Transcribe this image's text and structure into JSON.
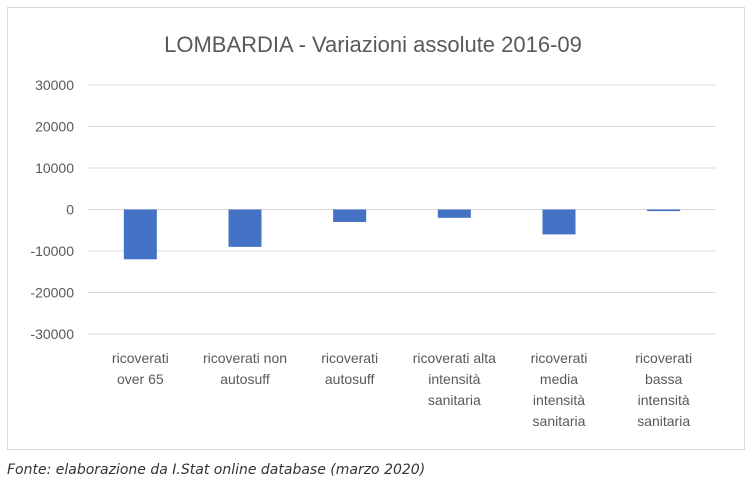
{
  "chart_data": {
    "type": "bar",
    "title": "LOMBARDIA - Variazioni assolute 2016-09",
    "xlabel": "",
    "ylabel": "",
    "ylim": [
      -30000,
      30000
    ],
    "yticks": [
      30000,
      20000,
      10000,
      0,
      -10000,
      -20000,
      -30000
    ],
    "grid": true,
    "legend": "none",
    "bar_color": "#4472c4",
    "categories": [
      [
        "ricoverati",
        "over 65"
      ],
      [
        "ricoverati non",
        "autosuff"
      ],
      [
        "ricoverati",
        "autosuff"
      ],
      [
        "ricoverati alta",
        "intensità",
        "sanitaria"
      ],
      [
        "ricoverati",
        "media",
        "intensità",
        "sanitaria"
      ],
      [
        "ricoverati",
        "bassa",
        "intensità",
        "sanitaria"
      ]
    ],
    "values": [
      -12000,
      -9000,
      -3000,
      -2000,
      -6000,
      -400
    ]
  },
  "caption": "Fonte: elaborazione da I.Stat online database (marzo 2020)"
}
